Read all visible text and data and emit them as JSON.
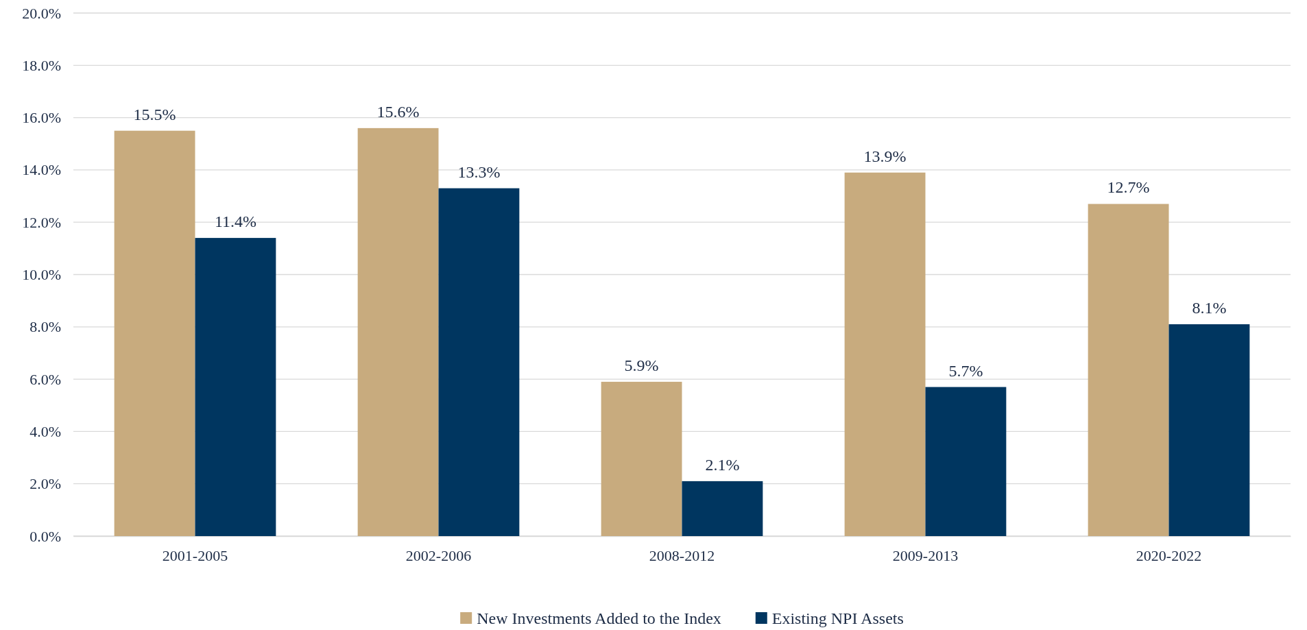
{
  "chart_data": {
    "type": "bar",
    "categories": [
      "2001-2005",
      "2002-2006",
      "2008-2012",
      "2009-2013",
      "2020-2022"
    ],
    "series": [
      {
        "name": "New Investments Added to the Index",
        "color": "#c8ab7e",
        "values": [
          15.5,
          15.6,
          5.9,
          13.9,
          12.7
        ],
        "value_labels": [
          "15.5%",
          "15.6%",
          "5.9%",
          "13.9%",
          "12.7%"
        ]
      },
      {
        "name": "Existing NPI Assets",
        "color": "#003660",
        "values": [
          11.4,
          13.3,
          2.1,
          5.7,
          8.1
        ],
        "value_labels": [
          "11.4%",
          "13.3%",
          "2.1%",
          "5.7%",
          "8.1%"
        ]
      }
    ],
    "ylim": [
      0,
      20
    ],
    "yticks": [
      {
        "value": 0,
        "label": "0.0%"
      },
      {
        "value": 2,
        "label": "2.0%"
      },
      {
        "value": 4,
        "label": "4.0%"
      },
      {
        "value": 6,
        "label": "6.0%"
      },
      {
        "value": 8,
        "label": "8.0%"
      },
      {
        "value": 10,
        "label": "10.0%"
      },
      {
        "value": 12,
        "label": "12.0%"
      },
      {
        "value": 14,
        "label": "14.0%"
      },
      {
        "value": 16,
        "label": "16.0%"
      },
      {
        "value": 18,
        "label": "18.0%"
      },
      {
        "value": 20,
        "label": "20.0%"
      }
    ],
    "grid": "y",
    "legend": "bottom"
  }
}
